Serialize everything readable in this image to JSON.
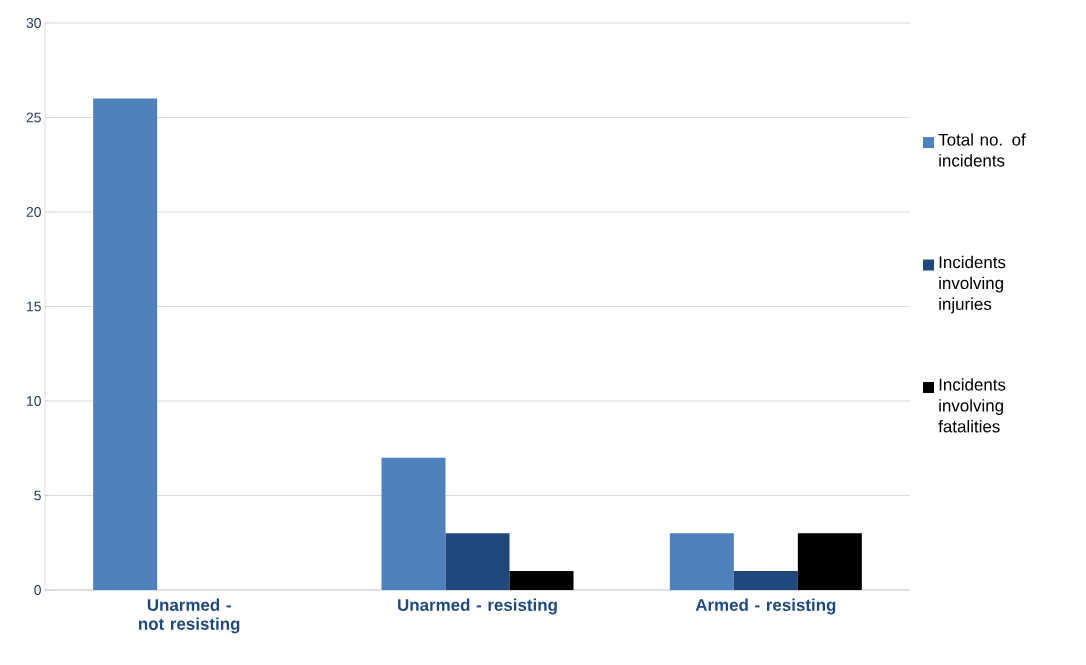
{
  "chart_data": {
    "type": "bar",
    "categories": [
      "Unarmed - not resisting",
      "Unarmed - resisting",
      "Armed - resisting"
    ],
    "series": [
      {
        "name": "Total no. of incidents",
        "color": "#4f81bd",
        "values": [
          26,
          7,
          3
        ]
      },
      {
        "name": "Incidents involving injuries",
        "color": "#1f497d",
        "values": [
          0,
          3,
          1
        ]
      },
      {
        "name": "Incidents involving fatalities",
        "color": "#000000",
        "values": [
          0,
          1,
          3
        ]
      }
    ],
    "ylim": [
      0,
      30
    ],
    "yticks": [
      0,
      5,
      10,
      15,
      20,
      25,
      30
    ],
    "grid": "y",
    "legend": "right"
  }
}
